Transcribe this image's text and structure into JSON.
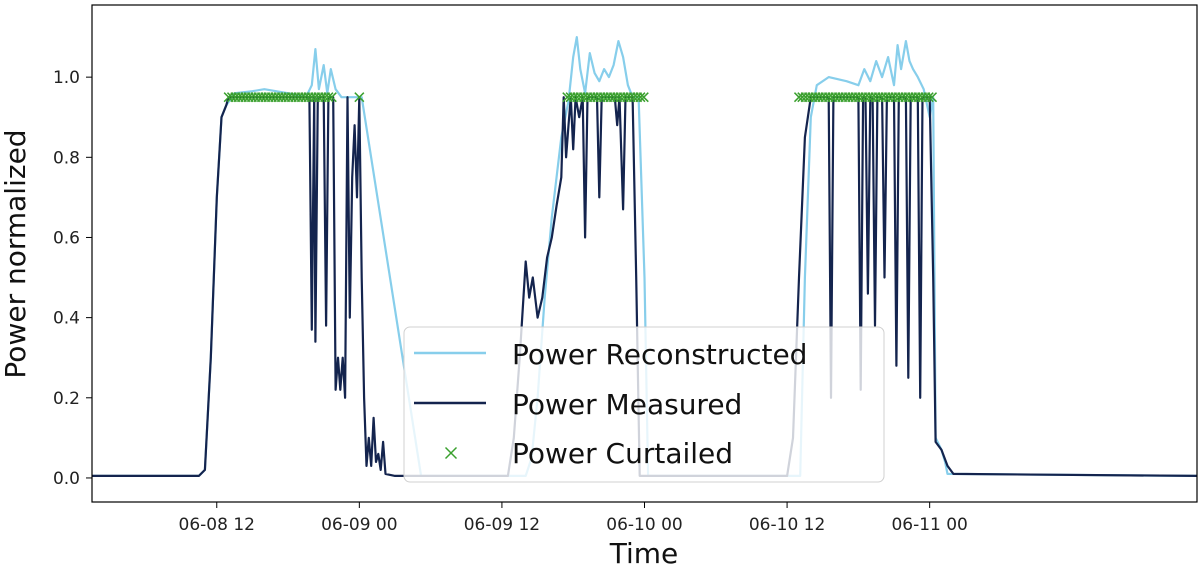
{
  "chart_data": {
    "type": "line",
    "xlabel": "Time",
    "ylabel": "Power normalized",
    "x_unit": "hours since 06-08 00",
    "xlim": [
      1.5,
      94.5
    ],
    "ylim": [
      -0.06,
      1.18
    ],
    "x_ticks": [
      {
        "x": 12,
        "label": "06-08 12"
      },
      {
        "x": 24,
        "label": "06-09 00"
      },
      {
        "x": 36,
        "label": "06-09 12"
      },
      {
        "x": 48,
        "label": "06-10 00"
      },
      {
        "x": 60,
        "label": "06-10 12"
      },
      {
        "x": 72,
        "label": "06-11 00"
      }
    ],
    "y_ticks": [
      {
        "y": 0.0,
        "label": "0.0"
      },
      {
        "y": 0.2,
        "label": "0.2"
      },
      {
        "y": 0.4,
        "label": "0.4"
      },
      {
        "y": 0.6,
        "label": "0.6"
      },
      {
        "y": 0.8,
        "label": "0.8"
      },
      {
        "y": 1.0,
        "label": "1.0"
      }
    ],
    "grid": false,
    "legend_position": "bottom-center",
    "colors": {
      "reconstructed": "#87ceeb",
      "measured": "#14244e",
      "curtailed": "#3aa02e"
    },
    "series": [
      {
        "name": "Power Reconstructed",
        "kind": "line",
        "color": "#87ceeb",
        "points": [
          [
            1.5,
            0.005
          ],
          [
            10.5,
            0.005
          ],
          [
            11.0,
            0.02
          ],
          [
            11.5,
            0.3
          ],
          [
            12.0,
            0.7
          ],
          [
            12.4,
            0.9
          ],
          [
            12.8,
            0.93
          ],
          [
            13.5,
            0.96
          ],
          [
            15,
            0.965
          ],
          [
            16,
            0.97
          ],
          [
            18,
            0.96
          ],
          [
            19.5,
            0.95
          ],
          [
            20,
            0.98
          ],
          [
            20.3,
            1.07
          ],
          [
            20.6,
            0.97
          ],
          [
            21,
            1.03
          ],
          [
            21.3,
            0.96
          ],
          [
            21.6,
            1.02
          ],
          [
            22,
            0.97
          ],
          [
            22.5,
            0.95
          ],
          [
            24.2,
            0.95
          ],
          [
            29.2,
            0.005
          ],
          [
            38.0,
            0.005
          ],
          [
            38.5,
            0.05
          ],
          [
            39.0,
            0.2
          ],
          [
            39.6,
            0.45
          ],
          [
            40.2,
            0.65
          ],
          [
            41.0,
            0.85
          ],
          [
            41.6,
            0.94
          ],
          [
            42.0,
            1.05
          ],
          [
            42.3,
            1.1
          ],
          [
            42.6,
            1.02
          ],
          [
            43.0,
            0.96
          ],
          [
            43.4,
            1.06
          ],
          [
            43.8,
            1.01
          ],
          [
            44.2,
            0.99
          ],
          [
            44.6,
            1.02
          ],
          [
            45.0,
            1.0
          ],
          [
            45.4,
            1.03
          ],
          [
            45.8,
            1.09
          ],
          [
            46.2,
            1.05
          ],
          [
            46.6,
            0.98
          ],
          [
            47.0,
            0.95
          ],
          [
            47.5,
            0.95
          ],
          [
            48.0,
            0.5
          ],
          [
            48.3,
            0.005
          ],
          [
            61.0,
            0.005
          ],
          [
            61.1,
            0.005
          ],
          [
            61.5,
            0.5
          ],
          [
            62.0,
            0.9
          ],
          [
            62.5,
            0.98
          ],
          [
            63.5,
            1.0
          ],
          [
            65,
            0.99
          ],
          [
            66,
            0.98
          ],
          [
            66.5,
            1.02
          ],
          [
            67,
            0.99
          ],
          [
            67.5,
            1.04
          ],
          [
            68,
            1.0
          ],
          [
            68.5,
            1.05
          ],
          [
            69,
            0.98
          ],
          [
            69.3,
            1.08
          ],
          [
            69.6,
            1.02
          ],
          [
            70,
            1.09
          ],
          [
            70.3,
            1.04
          ],
          [
            70.6,
            1.02
          ],
          [
            71,
            1.0
          ],
          [
            71.5,
            0.97
          ],
          [
            72,
            0.9
          ],
          [
            72.3,
            0.95
          ],
          [
            72.5,
            0.1
          ],
          [
            73,
            0.07
          ],
          [
            73.3,
            0.04
          ],
          [
            73.5,
            0.01
          ],
          [
            94.5,
            0.005
          ]
        ]
      },
      {
        "name": "Power Measured",
        "kind": "line",
        "color": "#14244e",
        "points": [
          [
            1.5,
            0.005
          ],
          [
            10.5,
            0.005
          ],
          [
            11.0,
            0.02
          ],
          [
            11.5,
            0.3
          ],
          [
            12.0,
            0.7
          ],
          [
            12.4,
            0.9
          ],
          [
            12.8,
            0.93
          ],
          [
            13.0,
            0.95
          ],
          [
            19.8,
            0.95
          ],
          [
            20.0,
            0.37
          ],
          [
            20.2,
            0.95
          ],
          [
            20.3,
            0.34
          ],
          [
            20.5,
            0.95
          ],
          [
            21.0,
            0.95
          ],
          [
            21.2,
            0.38
          ],
          [
            21.4,
            0.95
          ],
          [
            21.8,
            0.95
          ],
          [
            22.0,
            0.22
          ],
          [
            22.2,
            0.3
          ],
          [
            22.4,
            0.22
          ],
          [
            22.6,
            0.3
          ],
          [
            22.8,
            0.2
          ],
          [
            23.0,
            0.95
          ],
          [
            23.2,
            0.4
          ],
          [
            23.4,
            0.75
          ],
          [
            23.6,
            0.88
          ],
          [
            23.8,
            0.7
          ],
          [
            24.0,
            0.95
          ],
          [
            24.2,
            0.5
          ],
          [
            24.4,
            0.2
          ],
          [
            24.6,
            0.03
          ],
          [
            24.8,
            0.1
          ],
          [
            25.0,
            0.03
          ],
          [
            25.2,
            0.15
          ],
          [
            25.4,
            0.04
          ],
          [
            25.6,
            0.06
          ],
          [
            25.8,
            0.02
          ],
          [
            26.0,
            0.09
          ],
          [
            26.2,
            0.01
          ],
          [
            27,
            0.005
          ],
          [
            36.5,
            0.005
          ],
          [
            37.0,
            0.1
          ],
          [
            37.5,
            0.3
          ],
          [
            38.0,
            0.54
          ],
          [
            38.3,
            0.45
          ],
          [
            38.6,
            0.5
          ],
          [
            39.0,
            0.4
          ],
          [
            39.4,
            0.45
          ],
          [
            39.8,
            0.55
          ],
          [
            40.2,
            0.6
          ],
          [
            40.6,
            0.68
          ],
          [
            41.0,
            0.75
          ],
          [
            41.2,
            0.95
          ],
          [
            41.4,
            0.8
          ],
          [
            41.6,
            0.88
          ],
          [
            41.8,
            0.95
          ],
          [
            42.0,
            0.82
          ],
          [
            42.2,
            0.95
          ],
          [
            42.5,
            0.9
          ],
          [
            42.8,
            0.95
          ],
          [
            43.0,
            0.6
          ],
          [
            43.2,
            0.95
          ],
          [
            44.0,
            0.95
          ],
          [
            44.2,
            0.7
          ],
          [
            44.4,
            0.95
          ],
          [
            45.5,
            0.95
          ],
          [
            45.7,
            0.88
          ],
          [
            45.9,
            0.95
          ],
          [
            46.2,
            0.67
          ],
          [
            46.4,
            0.95
          ],
          [
            47.0,
            0.95
          ],
          [
            47.3,
            0.5
          ],
          [
            47.6,
            0.005
          ],
          [
            60.0,
            0.005
          ],
          [
            60.5,
            0.1
          ],
          [
            61.0,
            0.5
          ],
          [
            61.5,
            0.85
          ],
          [
            62.0,
            0.95
          ],
          [
            63.5,
            0.95
          ],
          [
            63.7,
            0.2
          ],
          [
            63.9,
            0.95
          ],
          [
            64.5,
            0.95
          ],
          [
            64.7,
            0.95
          ],
          [
            66.0,
            0.95
          ],
          [
            66.2,
            0.22
          ],
          [
            66.4,
            0.95
          ],
          [
            66.6,
            0.95
          ],
          [
            66.8,
            0.46
          ],
          [
            67.0,
            0.95
          ],
          [
            67.2,
            0.95
          ],
          [
            67.4,
            0.38
          ],
          [
            67.6,
            0.95
          ],
          [
            68.0,
            0.95
          ],
          [
            68.2,
            0.5
          ],
          [
            68.4,
            0.95
          ],
          [
            69.0,
            0.95
          ],
          [
            69.2,
            0.28
          ],
          [
            69.4,
            0.95
          ],
          [
            70.0,
            0.95
          ],
          [
            70.2,
            0.25
          ],
          [
            70.4,
            0.95
          ],
          [
            71.0,
            0.95
          ],
          [
            71.2,
            0.2
          ],
          [
            71.4,
            0.95
          ],
          [
            72.0,
            0.95
          ],
          [
            72.3,
            0.5
          ],
          [
            72.5,
            0.09
          ],
          [
            73.0,
            0.07
          ],
          [
            73.5,
            0.03
          ],
          [
            74.0,
            0.01
          ],
          [
            94.5,
            0.005
          ]
        ]
      },
      {
        "name": "Power Curtailed",
        "kind": "scatter",
        "color": "#3aa02e",
        "marker": "x",
        "y_value": 0.95,
        "x_segments": [
          [
            13.0,
            21.8,
            0.28
          ],
          [
            24.0,
            24.0,
            1.0
          ],
          [
            41.5,
            48.0,
            0.28
          ],
          [
            61.0,
            72.3,
            0.28
          ]
        ]
      }
    ]
  }
}
